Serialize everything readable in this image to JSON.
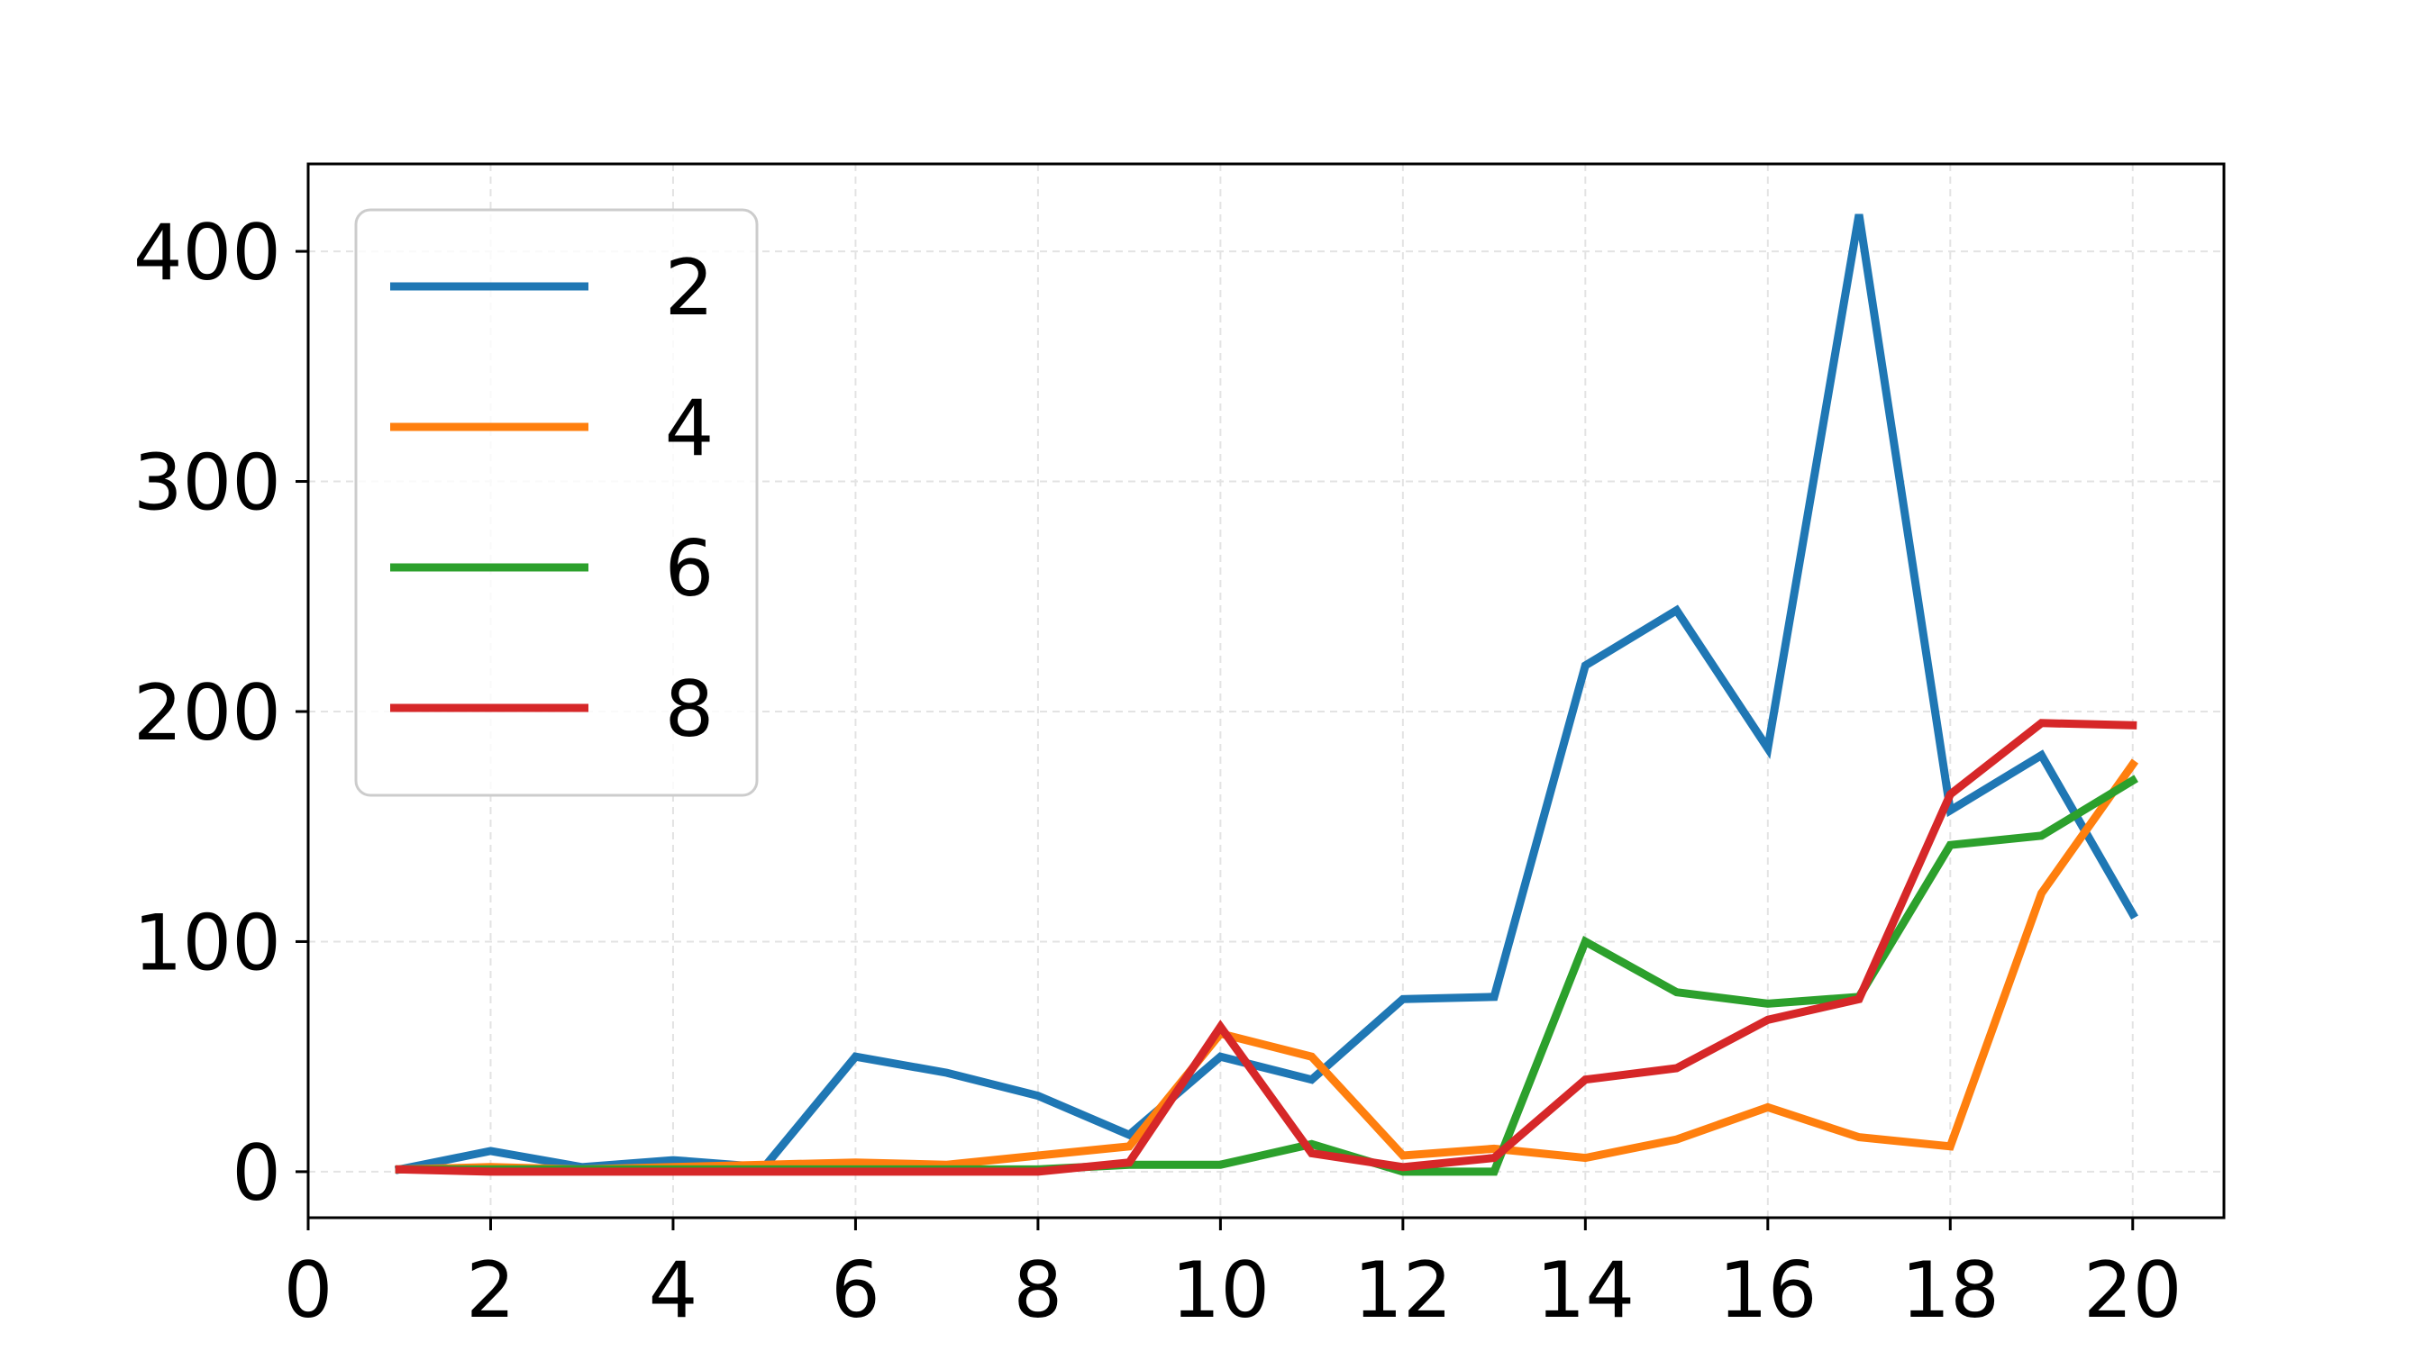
{
  "chart_data": {
    "type": "line",
    "title": "",
    "xlabel": "",
    "ylabel": "",
    "xlim": [
      0,
      21
    ],
    "ylim": [
      -20,
      438
    ],
    "x_ticks": [
      0,
      2,
      4,
      6,
      8,
      10,
      12,
      14,
      16,
      18,
      20
    ],
    "y_ticks": [
      0,
      100,
      200,
      300,
      400
    ],
    "grid": true,
    "legend_position": "top-left",
    "x": [
      1,
      2,
      3,
      4,
      5,
      6,
      7,
      8,
      9,
      10,
      11,
      12,
      13,
      14,
      15,
      16,
      17,
      18,
      19,
      20
    ],
    "series": [
      {
        "name": "2",
        "color": "#1f77b4",
        "values": [
          1,
          9,
          2,
          5,
          2,
          50,
          43,
          33,
          16,
          50,
          40,
          75,
          76,
          220,
          244,
          184,
          416,
          157,
          181,
          112
        ]
      },
      {
        "name": "4",
        "color": "#ff7f0e",
        "values": [
          1,
          2,
          1,
          2,
          3,
          4,
          3,
          7,
          11,
          60,
          50,
          7,
          10,
          6,
          14,
          28,
          15,
          11,
          121,
          177
        ]
      },
      {
        "name": "6",
        "color": "#2ca02c",
        "values": [
          1,
          1,
          1,
          1,
          1,
          1,
          1,
          1,
          3,
          3,
          12,
          0,
          0,
          100,
          78,
          73,
          76,
          142,
          146,
          170
        ]
      },
      {
        "name": "8",
        "color": "#d62728",
        "values": [
          1,
          0,
          0,
          0,
          0,
          0,
          0,
          0,
          4,
          63,
          8,
          2,
          6,
          40,
          45,
          66,
          75,
          164,
          195,
          194
        ]
      }
    ]
  }
}
